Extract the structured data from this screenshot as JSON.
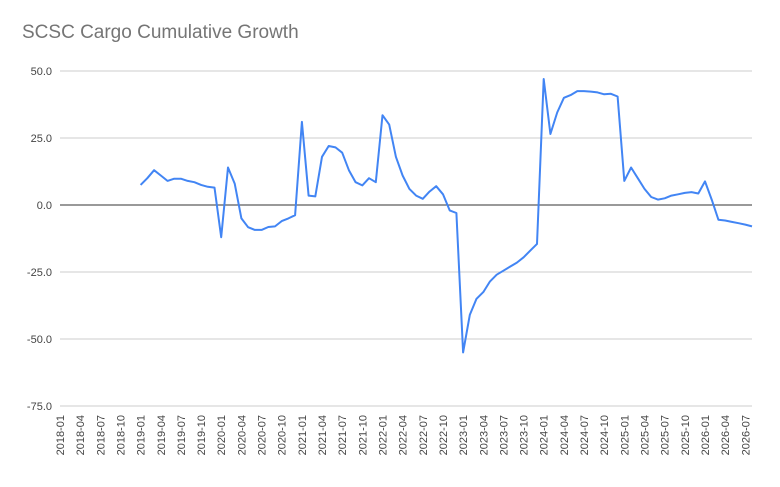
{
  "chart_data": {
    "type": "line",
    "title": "SCSC Cargo Cumulative Growth",
    "xlabel": "",
    "ylabel": "",
    "ylim": [
      -75,
      50
    ],
    "yticks": [
      50,
      25,
      0,
      -25,
      -50,
      -75
    ],
    "ytick_labels": [
      "50.0",
      "25.0",
      "0.0",
      "-25.0",
      "-50.0",
      "-75.0"
    ],
    "xlim": [
      "2018-01",
      "2026-08"
    ],
    "xtick_labels": [
      "2018-01",
      "2018-04",
      "2018-07",
      "2018-10",
      "2019-01",
      "2019-04",
      "2019-07",
      "2019-10",
      "2020-01",
      "2020-04",
      "2020-07",
      "2020-10",
      "2021-01",
      "2021-04",
      "2021-07",
      "2021-10",
      "2022-01",
      "2022-04",
      "2022-07",
      "2022-10",
      "2023-01",
      "2023-04",
      "2023-07",
      "2023-10",
      "2024-01",
      "2024-04",
      "2024-07",
      "2024-10",
      "2025-01",
      "2025-04",
      "2025-07",
      "2025-10",
      "2026-01",
      "2026-04",
      "2026-07"
    ],
    "grid": true,
    "legend": "none",
    "line_color": "#4285f4",
    "series": [
      {
        "x": [
          "2019-01",
          "2019-02",
          "2019-03",
          "2019-04",
          "2019-05",
          "2019-06",
          "2019-07",
          "2019-08",
          "2019-09",
          "2019-10",
          "2019-11",
          "2019-12",
          "2020-01",
          "2020-02",
          "2020-03",
          "2020-04",
          "2020-05",
          "2020-06",
          "2020-07",
          "2020-08",
          "2020-09",
          "2020-10",
          "2020-11",
          "2020-12",
          "2021-01",
          "2021-02",
          "2021-03",
          "2021-04",
          "2021-05",
          "2021-06",
          "2021-07",
          "2021-08",
          "2021-09",
          "2021-10",
          "2021-11",
          "2021-12",
          "2022-01",
          "2022-02",
          "2022-03",
          "2022-04",
          "2022-05",
          "2022-06",
          "2022-07",
          "2022-08",
          "2022-09",
          "2022-10",
          "2022-11",
          "2022-12",
          "2023-01",
          "2023-02",
          "2023-03",
          "2023-04",
          "2023-05",
          "2023-06",
          "2023-07",
          "2023-08",
          "2023-09",
          "2023-10",
          "2023-11",
          "2023-12",
          "2024-01",
          "2024-02",
          "2024-03",
          "2024-04",
          "2024-05",
          "2024-06",
          "2024-07",
          "2024-08",
          "2024-09",
          "2024-10",
          "2024-11",
          "2024-12",
          "2025-01",
          "2025-02",
          "2025-03",
          "2025-04",
          "2025-05",
          "2025-06",
          "2025-07",
          "2025-08",
          "2025-09",
          "2025-10",
          "2025-11",
          "2025-12",
          "2026-01",
          "2026-02",
          "2026-03",
          "2026-04",
          "2026-05",
          "2026-06",
          "2026-07",
          "2026-08"
        ],
        "values": [
          7.5,
          10,
          13,
          11,
          9,
          9.8,
          9.8,
          9,
          8.5,
          7.5,
          6.8,
          6.5,
          -12,
          14,
          8,
          -5,
          -8.3,
          -9.3,
          -9.3,
          -8.2,
          -8,
          -6,
          -5,
          -3.8,
          31,
          3.5,
          3.2,
          18,
          22,
          21.5,
          19.5,
          13,
          8.5,
          7.3,
          10,
          8.5,
          33.5,
          30,
          18,
          11,
          6,
          3.5,
          2.3,
          5,
          7,
          4,
          -2,
          -3,
          -55,
          -41,
          -35,
          -32.5,
          -28.5,
          -26,
          -24.5,
          -23,
          -21.5,
          -19.5,
          -17,
          -14.5,
          47,
          26.5,
          34.5,
          40,
          41,
          42.5,
          42.5,
          42.3,
          42,
          41.3,
          41.5,
          40.5,
          9,
          14,
          10,
          6,
          3,
          2,
          2.5,
          3.5,
          4,
          4.5,
          4.8,
          4.3,
          8.8,
          2,
          -5.5,
          -5.8,
          -6.3,
          -6.8,
          -7.3,
          -8
        ]
      }
    ]
  }
}
